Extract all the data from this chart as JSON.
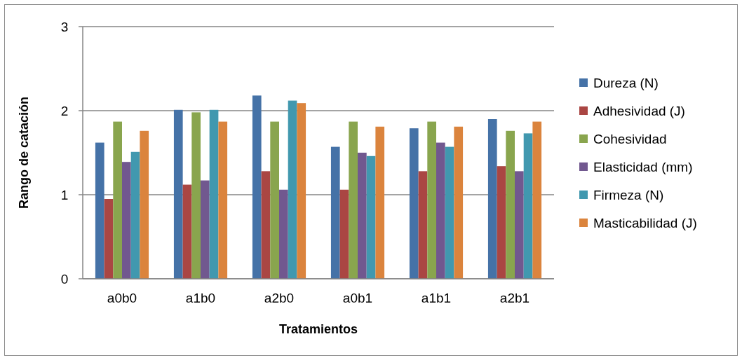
{
  "chart_data": {
    "type": "bar",
    "xlabel": "Tratamientos",
    "ylabel": "Rango de catación",
    "categories": [
      "a0b0",
      "a1b0",
      "a2b0",
      "a0b1",
      "a1b1",
      "a2b1"
    ],
    "series": [
      {
        "name": "Dureza (N)",
        "color": "#4572a7",
        "values": [
          1.62,
          2.01,
          2.18,
          1.57,
          1.79,
          1.9
        ]
      },
      {
        "name": "Adhesividad (J)",
        "color": "#aa4643",
        "values": [
          0.95,
          1.12,
          1.28,
          1.06,
          1.28,
          1.34
        ]
      },
      {
        "name": "Cohesividad",
        "color": "#89a54e",
        "values": [
          1.87,
          1.98,
          1.87,
          1.87,
          1.87,
          1.76
        ]
      },
      {
        "name": "Elasticidad (mm)",
        "color": "#71588f",
        "values": [
          1.39,
          1.17,
          1.06,
          1.5,
          1.62,
          1.28
        ]
      },
      {
        "name": "Firmeza (N)",
        "color": "#4198af",
        "values": [
          1.51,
          2.01,
          2.12,
          1.46,
          1.57,
          1.73
        ]
      },
      {
        "name": "Masticabilidad (J)",
        "color": "#db843d",
        "values": [
          1.76,
          1.87,
          2.09,
          1.81,
          1.81,
          1.87
        ]
      }
    ],
    "ylim": [
      0,
      3
    ],
    "yticks": [
      0,
      1,
      2,
      3
    ],
    "grid": "y",
    "legend": "right"
  }
}
